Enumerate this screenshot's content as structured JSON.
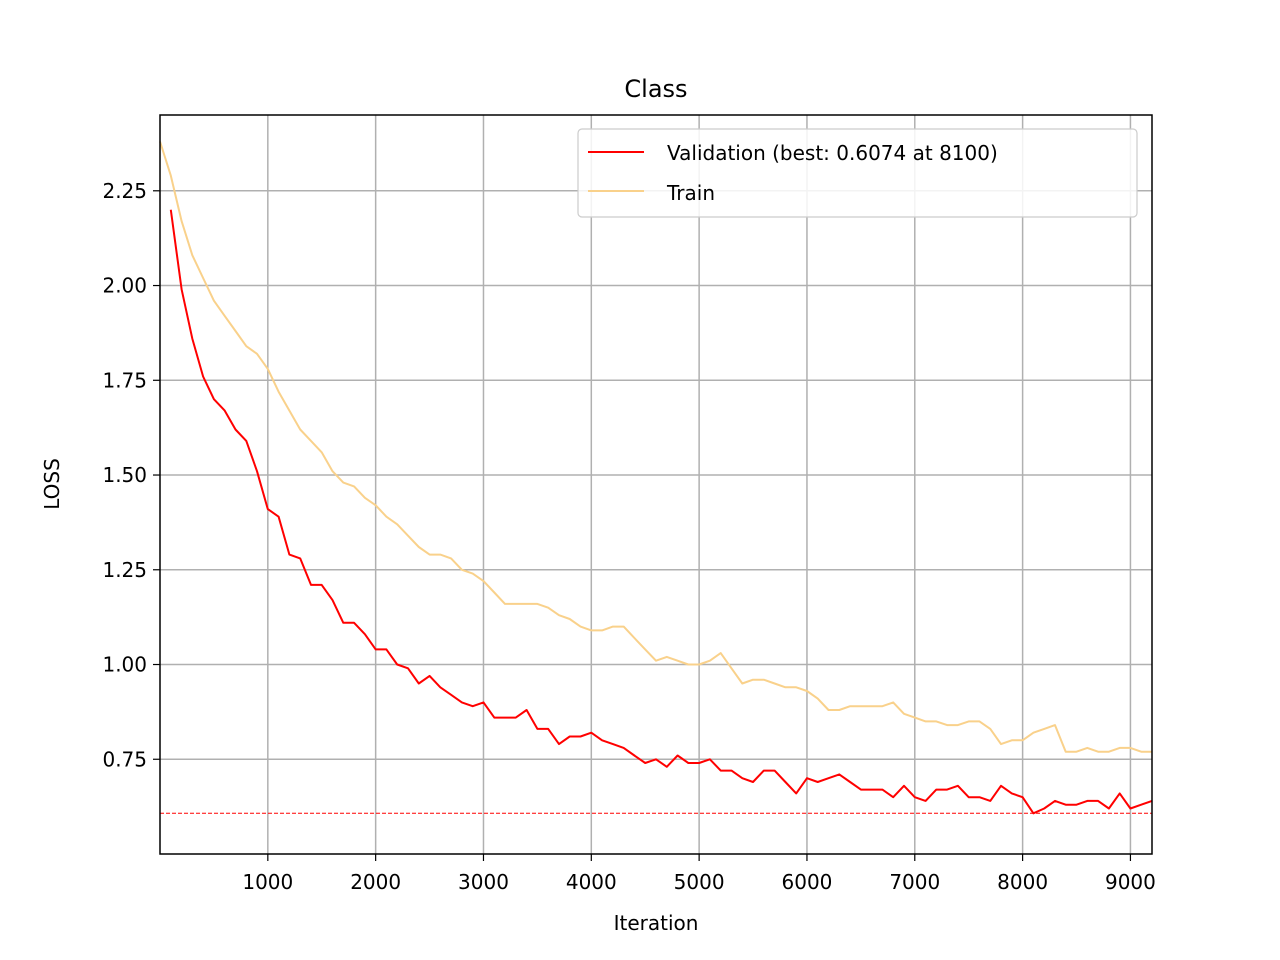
{
  "chart_data": {
    "type": "line",
    "title": "Class",
    "xlabel": "Iteration",
    "ylabel": "LOSS",
    "xlim": [
      0,
      9200
    ],
    "ylim": [
      0.5,
      2.45
    ],
    "xticks": [
      1000,
      2000,
      3000,
      4000,
      5000,
      6000,
      7000,
      8000,
      9000
    ],
    "yticks": [
      0.75,
      1.0,
      1.25,
      1.5,
      1.75,
      2.0,
      2.25
    ],
    "ytick_labels": [
      "0.75",
      "1.00",
      "1.25",
      "1.50",
      "1.75",
      "2.00",
      "2.25"
    ],
    "grid": true,
    "legend_position": "top-right",
    "best_line": {
      "y": 0.6074,
      "color": "#ff0000",
      "style": "dashed"
    },
    "series": [
      {
        "name": "Validation (best: 0.6074 at 8100)",
        "color": "#ff0000",
        "x": [
          100,
          200,
          300,
          400,
          500,
          600,
          700,
          800,
          900,
          1000,
          1100,
          1200,
          1300,
          1400,
          1500,
          1600,
          1700,
          1800,
          1900,
          2000,
          2100,
          2200,
          2300,
          2400,
          2500,
          2600,
          2700,
          2800,
          2900,
          3000,
          3100,
          3200,
          3300,
          3400,
          3500,
          3600,
          3700,
          3800,
          3900,
          4000,
          4100,
          4200,
          4300,
          4400,
          4500,
          4600,
          4700,
          4800,
          4900,
          5000,
          5100,
          5200,
          5300,
          5400,
          5500,
          5600,
          5700,
          5800,
          5900,
          6000,
          6100,
          6200,
          6300,
          6400,
          6500,
          6600,
          6700,
          6800,
          6900,
          7000,
          7100,
          7200,
          7300,
          7400,
          7500,
          7600,
          7700,
          7800,
          7900,
          8000,
          8100,
          8200,
          8300,
          8400,
          8500,
          8600,
          8700,
          8800,
          8900,
          9000,
          9100,
          9200
        ],
        "values": [
          2.2,
          1.99,
          1.86,
          1.76,
          1.7,
          1.67,
          1.62,
          1.59,
          1.51,
          1.41,
          1.39,
          1.29,
          1.28,
          1.21,
          1.21,
          1.17,
          1.11,
          1.11,
          1.08,
          1.04,
          1.04,
          1.0,
          0.99,
          0.95,
          0.97,
          0.94,
          0.92,
          0.9,
          0.89,
          0.9,
          0.86,
          0.86,
          0.86,
          0.88,
          0.83,
          0.83,
          0.79,
          0.81,
          0.81,
          0.82,
          0.8,
          0.79,
          0.78,
          0.76,
          0.74,
          0.75,
          0.73,
          0.76,
          0.74,
          0.74,
          0.75,
          0.72,
          0.72,
          0.7,
          0.69,
          0.72,
          0.72,
          0.69,
          0.66,
          0.7,
          0.69,
          0.7,
          0.71,
          0.69,
          0.67,
          0.67,
          0.67,
          0.65,
          0.68,
          0.65,
          0.64,
          0.67,
          0.67,
          0.68,
          0.65,
          0.65,
          0.64,
          0.68,
          0.66,
          0.65,
          0.6074,
          0.62,
          0.64,
          0.63,
          0.63,
          0.64,
          0.64,
          0.62,
          0.66,
          0.62,
          0.63,
          0.64
        ]
      },
      {
        "name": "Train",
        "color": "#f9d18b",
        "x": [
          0,
          100,
          200,
          300,
          400,
          500,
          600,
          700,
          800,
          900,
          1000,
          1100,
          1200,
          1300,
          1400,
          1500,
          1600,
          1700,
          1800,
          1900,
          2000,
          2100,
          2200,
          2300,
          2400,
          2500,
          2600,
          2700,
          2800,
          2900,
          3000,
          3100,
          3200,
          3300,
          3400,
          3500,
          3600,
          3700,
          3800,
          3900,
          4000,
          4100,
          4200,
          4300,
          4400,
          4500,
          4600,
          4700,
          4800,
          4900,
          5000,
          5100,
          5200,
          5300,
          5400,
          5500,
          5600,
          5700,
          5800,
          5900,
          6000,
          6100,
          6200,
          6300,
          6400,
          6500,
          6600,
          6700,
          6800,
          6900,
          7000,
          7100,
          7200,
          7300,
          7400,
          7500,
          7600,
          7700,
          7800,
          7900,
          8000,
          8100,
          8200,
          8300,
          8400,
          8500,
          8600,
          8700,
          8800,
          8900,
          9000,
          9100,
          9200
        ],
        "values": [
          2.38,
          2.29,
          2.17,
          2.08,
          2.02,
          1.96,
          1.92,
          1.88,
          1.84,
          1.82,
          1.78,
          1.72,
          1.67,
          1.62,
          1.59,
          1.56,
          1.51,
          1.48,
          1.47,
          1.44,
          1.42,
          1.39,
          1.37,
          1.34,
          1.31,
          1.29,
          1.29,
          1.28,
          1.25,
          1.24,
          1.22,
          1.19,
          1.16,
          1.16,
          1.16,
          1.16,
          1.15,
          1.13,
          1.12,
          1.1,
          1.09,
          1.09,
          1.1,
          1.1,
          1.07,
          1.04,
          1.01,
          1.02,
          1.01,
          1.0,
          1.0,
          1.01,
          1.03,
          0.99,
          0.95,
          0.96,
          0.96,
          0.95,
          0.94,
          0.94,
          0.93,
          0.91,
          0.88,
          0.88,
          0.89,
          0.89,
          0.89,
          0.89,
          0.9,
          0.87,
          0.86,
          0.85,
          0.85,
          0.84,
          0.84,
          0.85,
          0.85,
          0.83,
          0.79,
          0.8,
          0.8,
          0.82,
          0.83,
          0.84,
          0.77,
          0.77,
          0.78,
          0.77,
          0.77,
          0.78,
          0.78,
          0.77,
          0.77
        ]
      }
    ]
  }
}
